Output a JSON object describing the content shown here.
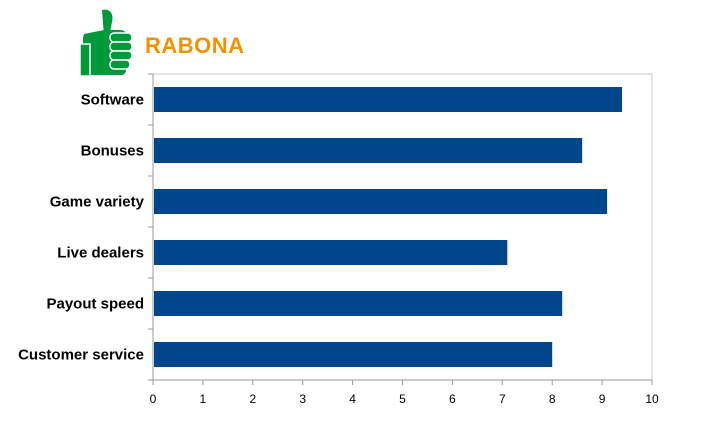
{
  "brand": {
    "name": "RABONA"
  },
  "colors": {
    "bar": "#00468b",
    "brand": "#f39200",
    "logo": "#009a3a",
    "axis": "#9a9a9a"
  },
  "icons": {
    "logo": "thumbs-up-icon"
  },
  "chart_data": {
    "type": "bar",
    "orientation": "horizontal",
    "title": "",
    "xlabel": "",
    "ylabel": "",
    "categories": [
      "Software",
      "Bonuses",
      "Game variety",
      "Live dealers",
      "Payout speed",
      "Customer service"
    ],
    "values": [
      9.4,
      8.6,
      9.1,
      7.1,
      8.2,
      8.0
    ],
    "xlim": [
      0,
      10
    ],
    "xticks": [
      0,
      1,
      2,
      3,
      4,
      5,
      6,
      7,
      8,
      9,
      10
    ],
    "grid": false,
    "legend": "none"
  }
}
